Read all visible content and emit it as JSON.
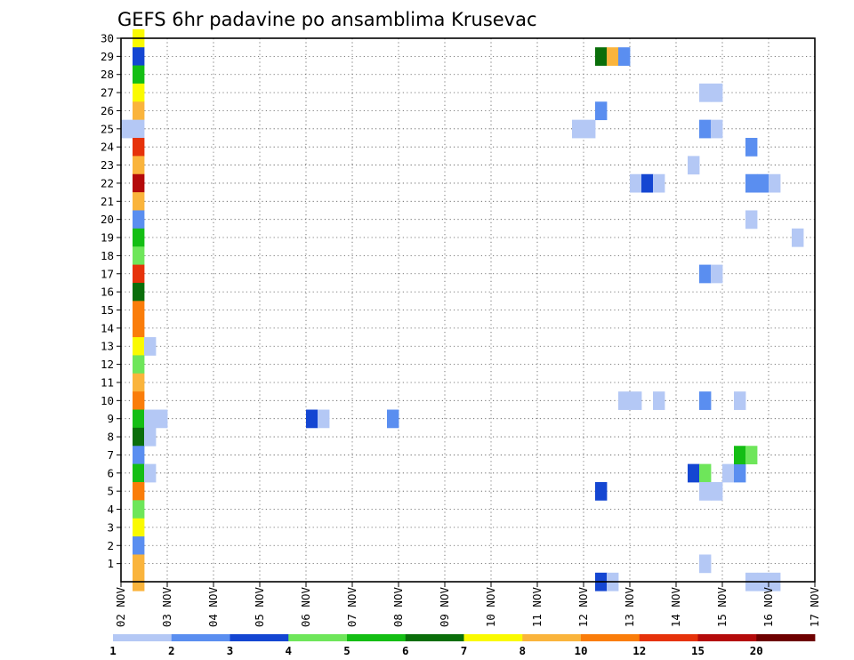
{
  "chart_data": {
    "type": "heatmap",
    "title": "GEFS 6hr padavine po ansamblima Krusevac",
    "xlabel": "",
    "ylabel": "",
    "x_ticks": [
      "02 NOV",
      "03 NOV",
      "04 NOV",
      "05 NOV",
      "06 NOV",
      "07 NOV",
      "08 NOV",
      "09 NOV",
      "10 NOV",
      "11 NOV",
      "12 NOV",
      "13 NOV",
      "14 NOV",
      "15 NOV",
      "16 NOV",
      "17 NOV"
    ],
    "x_range": [
      0,
      15
    ],
    "y_ticks": [
      1,
      2,
      3,
      4,
      5,
      6,
      7,
      8,
      9,
      10,
      11,
      12,
      13,
      14,
      15,
      16,
      17,
      18,
      19,
      20,
      21,
      22,
      23,
      24,
      25,
      26,
      27,
      28,
      29,
      30
    ],
    "y_range": [
      0,
      30
    ],
    "grid": true,
    "color_scale": {
      "labels": [
        "1",
        "2",
        "3",
        "4",
        "5",
        "6",
        "7",
        "8",
        "10",
        "12",
        "15",
        "20"
      ],
      "bins": [
        [
          1,
          2
        ],
        [
          2,
          3
        ],
        [
          3,
          4
        ],
        [
          4,
          5
        ],
        [
          5,
          6
        ],
        [
          6,
          7
        ],
        [
          7,
          8
        ],
        [
          8,
          10
        ],
        [
          10,
          12
        ],
        [
          12,
          15
        ],
        [
          15,
          20
        ],
        [
          20,
          null
        ]
      ],
      "colors": [
        "#b4c8f5",
        "#5a8ef0",
        "#1446d2",
        "#6ee65a",
        "#14be14",
        "#0a6e0a",
        "#fafa00",
        "#fab43c",
        "#fa7d0a",
        "#e6320a",
        "#b40a0a",
        "#6e0000"
      ]
    },
    "cells": [
      {
        "x": 0.25,
        "y": 30,
        "c": 6
      },
      {
        "x": 0.25,
        "y": 29,
        "c": 2
      },
      {
        "x": 0.25,
        "y": 28,
        "c": 4
      },
      {
        "x": 0.25,
        "y": 27,
        "c": 6
      },
      {
        "x": 0.25,
        "y": 26,
        "c": 7
      },
      {
        "x": 0.25,
        "y": 25,
        "c": 0
      },
      {
        "x": 0.0,
        "y": 25,
        "c": 0
      },
      {
        "x": 0.25,
        "y": 24,
        "c": 9
      },
      {
        "x": 0.25,
        "y": 23,
        "c": 7
      },
      {
        "x": 0.25,
        "y": 22,
        "c": 10
      },
      {
        "x": 0.25,
        "y": 21,
        "c": 7
      },
      {
        "x": 0.25,
        "y": 20,
        "c": 1
      },
      {
        "x": 0.25,
        "y": 19,
        "c": 4
      },
      {
        "x": 0.25,
        "y": 18,
        "c": 3
      },
      {
        "x": 0.25,
        "y": 17,
        "c": 9
      },
      {
        "x": 0.25,
        "y": 16,
        "c": 5
      },
      {
        "x": 0.25,
        "y": 15,
        "c": 8
      },
      {
        "x": 0.25,
        "y": 14,
        "c": 8
      },
      {
        "x": 0.25,
        "y": 13,
        "c": 6
      },
      {
        "x": 0.5,
        "y": 13,
        "c": 0
      },
      {
        "x": 0.25,
        "y": 12,
        "c": 3
      },
      {
        "x": 0.25,
        "y": 11,
        "c": 7
      },
      {
        "x": 0.25,
        "y": 10,
        "c": 8
      },
      {
        "x": 0.25,
        "y": 9,
        "c": 4
      },
      {
        "x": 0.5,
        "y": 9,
        "c": 0
      },
      {
        "x": 0.75,
        "y": 9,
        "c": 0
      },
      {
        "x": 0.25,
        "y": 8,
        "c": 5
      },
      {
        "x": 0.5,
        "y": 8,
        "c": 0
      },
      {
        "x": 0.25,
        "y": 7,
        "c": 1
      },
      {
        "x": 0.25,
        "y": 6,
        "c": 4
      },
      {
        "x": 0.5,
        "y": 6,
        "c": 0
      },
      {
        "x": 0.25,
        "y": 5,
        "c": 8
      },
      {
        "x": 0.25,
        "y": 4,
        "c": 3
      },
      {
        "x": 0.25,
        "y": 3,
        "c": 6
      },
      {
        "x": 0.25,
        "y": 2,
        "c": 1
      },
      {
        "x": 0.25,
        "y": 1,
        "c": 7
      },
      {
        "x": 0.25,
        "y": 0,
        "c": 7
      },
      {
        "x": 4.0,
        "y": 9,
        "c": 2
      },
      {
        "x": 4.25,
        "y": 9,
        "c": 0
      },
      {
        "x": 5.75,
        "y": 9,
        "c": 1
      },
      {
        "x": 9.75,
        "y": 25,
        "c": 0
      },
      {
        "x": 10.0,
        "y": 25,
        "c": 0
      },
      {
        "x": 10.25,
        "y": 29,
        "c": 5
      },
      {
        "x": 10.5,
        "y": 29,
        "c": 7
      },
      {
        "x": 10.75,
        "y": 29,
        "c": 1
      },
      {
        "x": 10.25,
        "y": 26,
        "c": 1
      },
      {
        "x": 10.25,
        "y": 5,
        "c": 2
      },
      {
        "x": 10.25,
        "y": 0,
        "c": 2
      },
      {
        "x": 10.5,
        "y": 0,
        "c": 0
      },
      {
        "x": 10.75,
        "y": 10,
        "c": 0
      },
      {
        "x": 11.0,
        "y": 10,
        "c": 0
      },
      {
        "x": 11.0,
        "y": 22,
        "c": 0
      },
      {
        "x": 11.25,
        "y": 22,
        "c": 2
      },
      {
        "x": 11.5,
        "y": 22,
        "c": 0
      },
      {
        "x": 11.5,
        "y": 10,
        "c": 0
      },
      {
        "x": 12.25,
        "y": 23,
        "c": 0
      },
      {
        "x": 12.25,
        "y": 6,
        "c": 2
      },
      {
        "x": 12.5,
        "y": 27,
        "c": 0
      },
      {
        "x": 12.75,
        "y": 27,
        "c": 0
      },
      {
        "x": 12.5,
        "y": 25,
        "c": 1
      },
      {
        "x": 12.75,
        "y": 25,
        "c": 0
      },
      {
        "x": 12.5,
        "y": 17,
        "c": 1
      },
      {
        "x": 12.75,
        "y": 17,
        "c": 0
      },
      {
        "x": 12.5,
        "y": 10,
        "c": 1
      },
      {
        "x": 12.5,
        "y": 6,
        "c": 3
      },
      {
        "x": 12.5,
        "y": 5,
        "c": 0
      },
      {
        "x": 12.75,
        "y": 5,
        "c": 0
      },
      {
        "x": 12.5,
        "y": 1,
        "c": 0
      },
      {
        "x": 13.0,
        "y": 6,
        "c": 0
      },
      {
        "x": 13.25,
        "y": 6,
        "c": 1
      },
      {
        "x": 13.25,
        "y": 10,
        "c": 0
      },
      {
        "x": 13.25,
        "y": 7,
        "c": 4
      },
      {
        "x": 13.5,
        "y": 7,
        "c": 3
      },
      {
        "x": 13.5,
        "y": 24,
        "c": 1
      },
      {
        "x": 13.5,
        "y": 22,
        "c": 1
      },
      {
        "x": 13.75,
        "y": 22,
        "c": 1
      },
      {
        "x": 14.0,
        "y": 22,
        "c": 0
      },
      {
        "x": 13.5,
        "y": 20,
        "c": 0
      },
      {
        "x": 13.5,
        "y": 0,
        "c": 0
      },
      {
        "x": 13.75,
        "y": 0,
        "c": 0
      },
      {
        "x": 14.0,
        "y": 0,
        "c": 0
      },
      {
        "x": 14.5,
        "y": 19,
        "c": 0
      }
    ]
  }
}
